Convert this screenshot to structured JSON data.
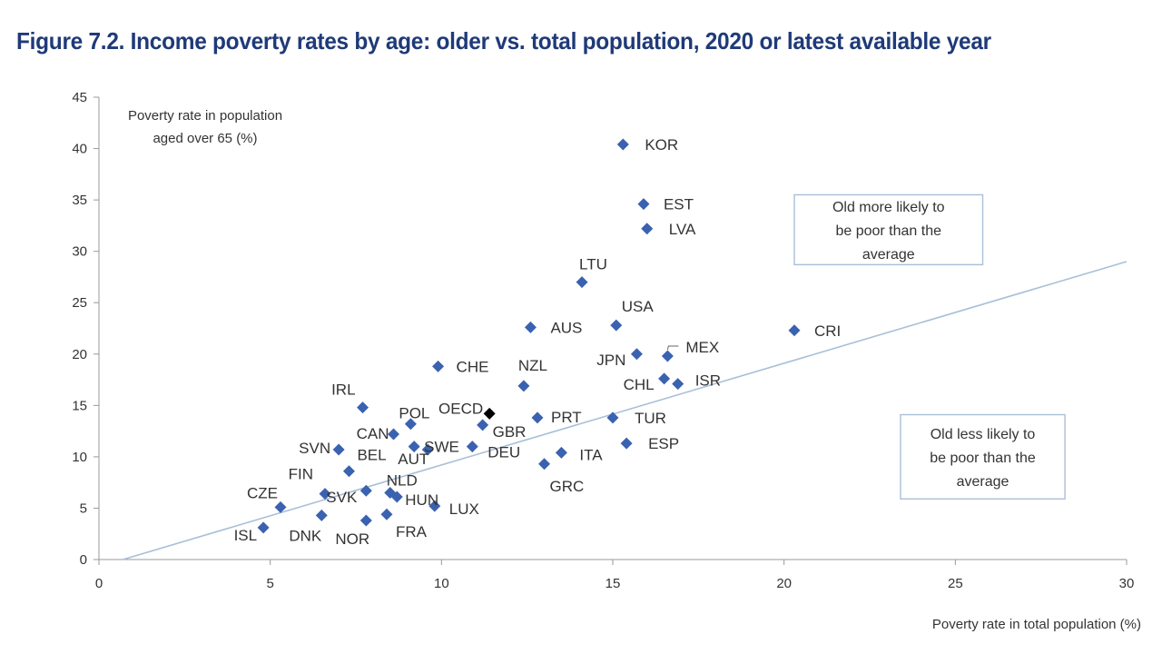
{
  "title": "Figure 7.2. Income poverty rates by age: older vs. total population, 2020 or latest available year",
  "chart_data": {
    "type": "scatter",
    "xlabel": "Poverty rate in total population (%)",
    "ylabel": [
      "Poverty rate in population",
      "aged over 65 (%)"
    ],
    "xlim": [
      0,
      30
    ],
    "ylim": [
      0,
      45
    ],
    "xticks": [
      0,
      5,
      10,
      15,
      20,
      25,
      30
    ],
    "yticks": [
      0,
      5,
      10,
      15,
      20,
      25,
      30,
      35,
      40,
      45
    ],
    "grid": false,
    "marker_color": "#3a62b0",
    "highlight_color": "#000000",
    "line_color": "#a9bfd8",
    "reference_line": {
      "x": [
        0.7,
        30
      ],
      "y": [
        0,
        29
      ]
    },
    "annotations": [
      {
        "lines": [
          "Old more likely to",
          "be poor than the",
          "average"
        ],
        "x0": 20.3,
        "x1": 25.8,
        "y0": 28.7,
        "y1": 35.5
      },
      {
        "lines": [
          "Old less likely to",
          "be poor than the",
          "average"
        ],
        "x0": 23.4,
        "x1": 28.2,
        "y0": 5.9,
        "y1": 14.1
      }
    ],
    "points": [
      {
        "label": "KOR",
        "x": 15.3,
        "y": 40.4
      },
      {
        "label": "EST",
        "x": 15.9,
        "y": 34.6
      },
      {
        "label": "LVA",
        "x": 16.0,
        "y": 32.2
      },
      {
        "label": "LTU",
        "x": 14.1,
        "y": 27.0
      },
      {
        "label": "USA",
        "x": 15.1,
        "y": 22.8
      },
      {
        "label": "AUS",
        "x": 12.6,
        "y": 22.6
      },
      {
        "label": "CRI",
        "x": 20.3,
        "y": 22.3
      },
      {
        "label": "MEX",
        "x": 16.6,
        "y": 19.8
      },
      {
        "label": "JPN",
        "x": 15.7,
        "y": 20.0
      },
      {
        "label": "CHE",
        "x": 9.9,
        "y": 18.8
      },
      {
        "label": "NZL",
        "x": 12.4,
        "y": 16.9
      },
      {
        "label": "CHL",
        "x": 16.5,
        "y": 17.6
      },
      {
        "label": "ISR",
        "x": 16.9,
        "y": 17.1
      },
      {
        "label": "IRL",
        "x": 7.7,
        "y": 14.8
      },
      {
        "label": "OECD",
        "x": 11.4,
        "y": 14.2,
        "highlight": true
      },
      {
        "label": "PRT",
        "x": 12.8,
        "y": 13.8
      },
      {
        "label": "TUR",
        "x": 15.0,
        "y": 13.8
      },
      {
        "label": "POL",
        "x": 9.1,
        "y": 13.2
      },
      {
        "label": "GBR",
        "x": 11.2,
        "y": 13.1
      },
      {
        "label": "CAN",
        "x": 8.6,
        "y": 12.2
      },
      {
        "label": "SWE",
        "x": 9.2,
        "y": 11.0
      },
      {
        "label": "SVN",
        "x": 7.0,
        "y": 10.7
      },
      {
        "label": "ESP",
        "x": 15.4,
        "y": 11.3
      },
      {
        "label": "DEU",
        "x": 10.9,
        "y": 11.0
      },
      {
        "label": "AUT",
        "x": 9.6,
        "y": 10.7
      },
      {
        "label": "ITA",
        "x": 13.5,
        "y": 10.4
      },
      {
        "label": "BEL",
        "x": 7.3,
        "y": 8.6
      },
      {
        "label": "GRC",
        "x": 13.0,
        "y": 9.3
      },
      {
        "label": "NLD",
        "x": 8.5,
        "y": 6.5
      },
      {
        "label": "HUN",
        "x": 8.7,
        "y": 6.1
      },
      {
        "label": "FIN",
        "x": 6.6,
        "y": 6.4
      },
      {
        "label": "SVK",
        "x": 7.8,
        "y": 6.7
      },
      {
        "label": "CZE",
        "x": 5.3,
        "y": 5.1
      },
      {
        "label": "LUX",
        "x": 9.8,
        "y": 5.2
      },
      {
        "label": "DNK",
        "x": 6.5,
        "y": 4.3
      },
      {
        "label": "FRA",
        "x": 8.4,
        "y": 4.4
      },
      {
        "label": "NOR",
        "x": 7.8,
        "y": 3.8
      },
      {
        "label": "ISL",
        "x": 4.8,
        "y": 3.1
      }
    ]
  }
}
